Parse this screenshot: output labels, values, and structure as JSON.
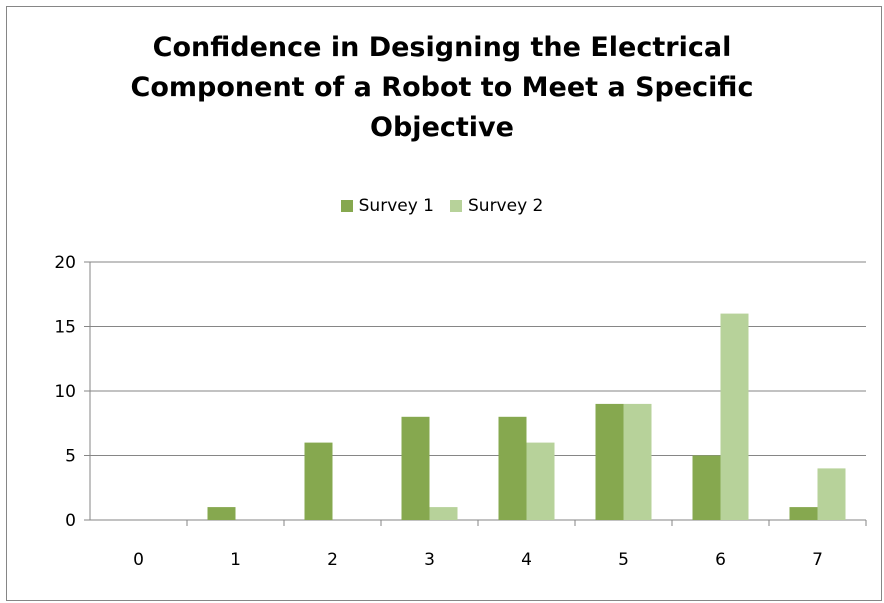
{
  "chart_data": {
    "type": "bar",
    "title": "Confidence in Designing the Electrical Component of a Robot to Meet a Specific Objective",
    "title_lines": [
      "Confidence in Designing the Electrical",
      "Component of a Robot to Meet a Specific",
      "Objective"
    ],
    "categories": [
      "0",
      "1",
      "2",
      "3",
      "4",
      "5",
      "6",
      "7"
    ],
    "series": [
      {
        "name": "Survey 1",
        "color": "#86a84f",
        "values": [
          0,
          1,
          6,
          8,
          8,
          9,
          5,
          1
        ]
      },
      {
        "name": "Survey 2",
        "color": "#b7d29a",
        "values": [
          0,
          0,
          0,
          1,
          6,
          9,
          16,
          4
        ]
      }
    ],
    "ylim": [
      0,
      20
    ],
    "yticks": [
      0,
      5,
      10,
      15,
      20
    ],
    "grid": true,
    "legend_position": "top"
  }
}
